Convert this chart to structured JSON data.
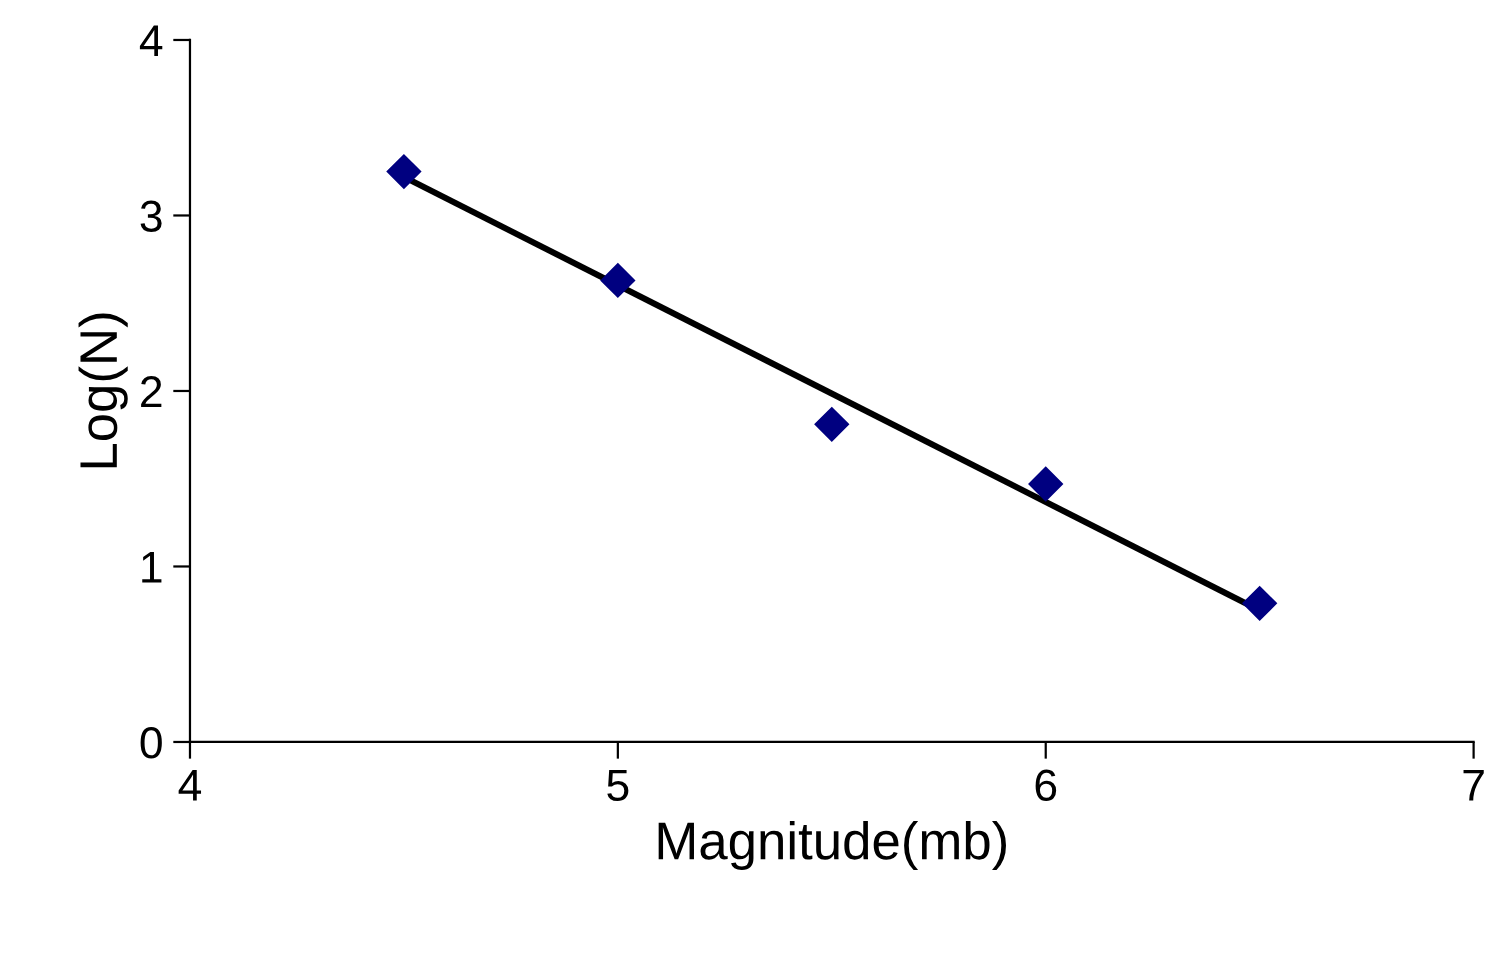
{
  "chart_data": {
    "type": "scatter",
    "xlabel": "Magnitude(mb)",
    "ylabel": "Log(N)",
    "series": [
      {
        "color": "#000080",
        "x": [
          4.5,
          5,
          5.5,
          6,
          6.5
        ],
        "values": [
          3.25,
          2.63,
          1.81,
          1.47,
          0.79
        ],
        "marker": "diamond"
      },
      {
        "type": "line",
        "color": "#000000",
        "x": [
          4.5,
          6.5
        ],
        "values": [
          3.22,
          0.75
        ],
        "marker": "none",
        "line_style": "solid"
      }
    ],
    "xlim": [
      4,
      7
    ],
    "ylim": [
      0,
      4
    ],
    "xticks": [
      4,
      5,
      6,
      7
    ],
    "yticks": [
      0,
      1,
      2,
      3,
      4
    ],
    "grid": false,
    "legend": false
  }
}
